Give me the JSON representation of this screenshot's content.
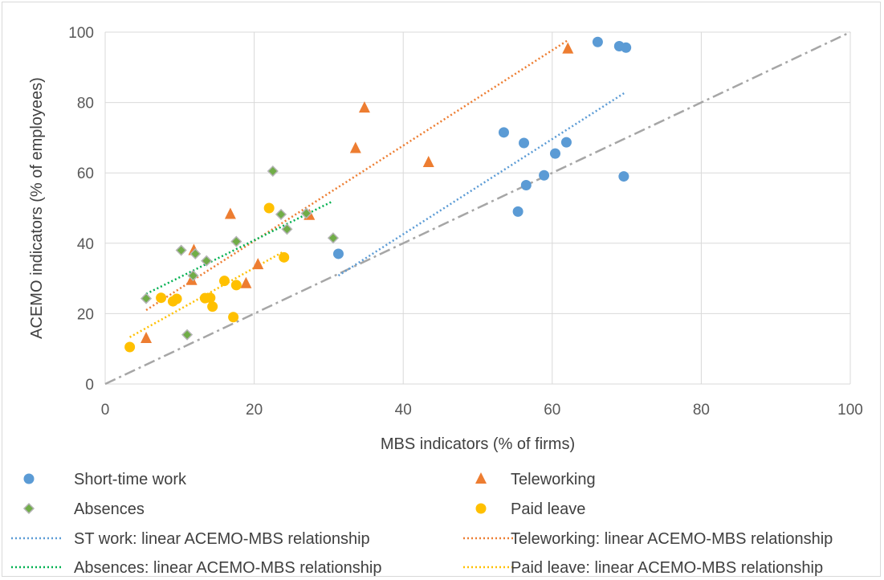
{
  "chart_data": {
    "type": "scatter",
    "title": "",
    "xlabel": "MBS indicators (% of firms)",
    "ylabel": "ACEMO indicators (% of employees)",
    "xlim": [
      0,
      100
    ],
    "ylim": [
      0,
      100
    ],
    "x_ticks": [
      "0",
      "20",
      "40",
      "60",
      "80",
      "100"
    ],
    "y_ticks": [
      "0",
      "20",
      "40",
      "60",
      "80",
      "100"
    ],
    "grid": true,
    "legend_position": "bottom",
    "series": [
      {
        "name": "Short-time work",
        "marker": "circle",
        "color": "#5b9bd5",
        "points": [
          [
            31.3,
            37.0
          ],
          [
            53.5,
            71.5
          ],
          [
            55.4,
            49.0
          ],
          [
            56.2,
            68.5
          ],
          [
            56.5,
            56.5
          ],
          [
            58.9,
            59.3
          ],
          [
            60.4,
            65.5
          ],
          [
            61.9,
            68.7
          ],
          [
            66.1,
            97.2
          ],
          [
            69.0,
            96.0
          ],
          [
            69.9,
            95.6
          ],
          [
            69.6,
            59.0
          ]
        ]
      },
      {
        "name": "Teleworking",
        "marker": "triangle",
        "color": "#ed7d31",
        "points": [
          [
            5.5,
            13.0
          ],
          [
            11.6,
            29.5
          ],
          [
            11.9,
            38.0
          ],
          [
            16.8,
            48.3
          ],
          [
            18.9,
            28.6
          ],
          [
            20.5,
            34.0
          ],
          [
            27.4,
            48.0
          ],
          [
            33.6,
            67.0
          ],
          [
            34.8,
            78.5
          ],
          [
            43.4,
            63.0
          ],
          [
            62.1,
            95.3
          ]
        ]
      },
      {
        "name": "Absences",
        "marker": "diamond",
        "color": "#70ad47",
        "points": [
          [
            5.5,
            24.3
          ],
          [
            10.2,
            38.0
          ],
          [
            11.0,
            14.0
          ],
          [
            11.8,
            30.8
          ],
          [
            12.1,
            37.0
          ],
          [
            13.6,
            35.0
          ],
          [
            17.6,
            40.5
          ],
          [
            22.5,
            60.5
          ],
          [
            23.6,
            48.2
          ],
          [
            24.4,
            44.0
          ],
          [
            27.0,
            48.5
          ],
          [
            30.6,
            41.5
          ]
        ]
      },
      {
        "name": "Paid leave",
        "marker": "circle",
        "color": "#ffc000",
        "points": [
          [
            3.3,
            10.5
          ],
          [
            7.5,
            24.5
          ],
          [
            9.1,
            23.5
          ],
          [
            9.6,
            24.2
          ],
          [
            13.4,
            24.4
          ],
          [
            14.1,
            24.5
          ],
          [
            14.4,
            22.0
          ],
          [
            16.0,
            29.3
          ],
          [
            17.2,
            19.0
          ],
          [
            17.6,
            28.1
          ],
          [
            22.0,
            50.0
          ],
          [
            24.0,
            36.0
          ]
        ]
      }
    ],
    "trendlines": [
      {
        "name": "ST work: linear ACEMO-MBS relationship",
        "color": "#5b9bd5",
        "from": [
          31.3,
          30.8
        ],
        "to": [
          69.9,
          83.0
        ]
      },
      {
        "name": "Teleworking: linear ACEMO-MBS relationship",
        "color": "#ed7d31",
        "from": [
          5.5,
          21.0
        ],
        "to": [
          62.1,
          97.7
        ]
      },
      {
        "name": "Absences: linear ACEMO-MBS relationship",
        "color": "#00b050",
        "from": [
          5.5,
          25.6
        ],
        "to": [
          30.6,
          52.0
        ]
      },
      {
        "name": "Paid leave: linear ACEMO-MBS relationship",
        "color": "#ffc000",
        "from": [
          3.3,
          13.3
        ],
        "to": [
          24.0,
          37.7
        ]
      }
    ],
    "reference_line": {
      "type": "y = x",
      "color": "#a6a6a6",
      "from": [
        0,
        0
      ],
      "to": [
        100,
        100
      ]
    }
  }
}
